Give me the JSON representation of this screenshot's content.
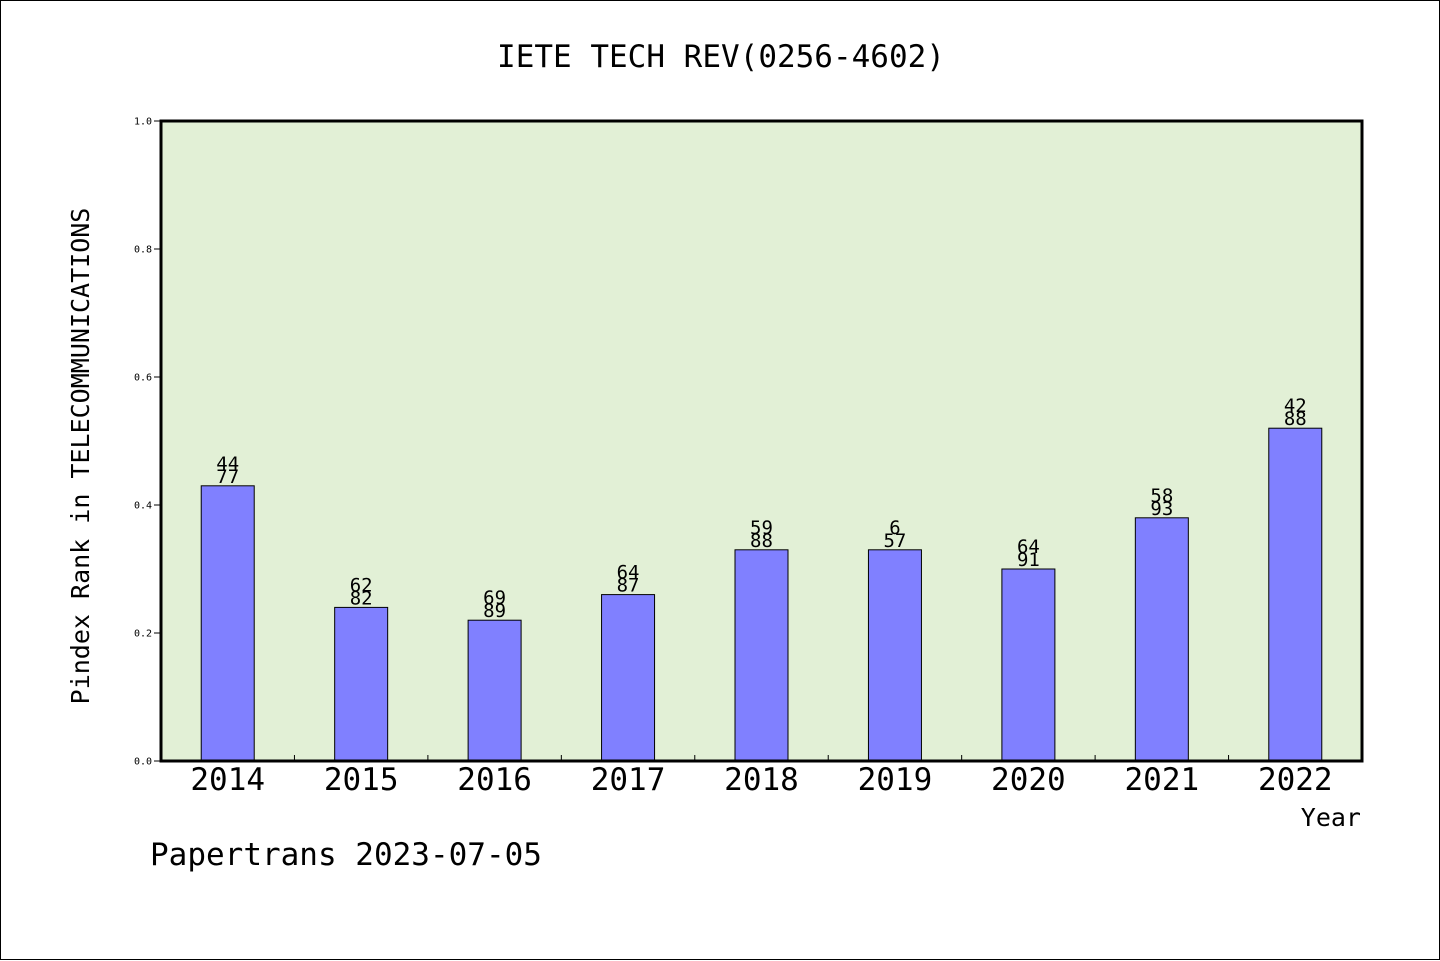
{
  "chart_data": {
    "type": "bar",
    "title": "IETE TECH REV(0256-4602)",
    "xlabel": "Year",
    "ylabel": "Pindex Rank in TELECOMMUNICATIONS",
    "categories": [
      "2014",
      "2015",
      "2016",
      "2017",
      "2018",
      "2019",
      "2020",
      "2021",
      "2022"
    ],
    "values": [
      0.43,
      0.24,
      0.22,
      0.26,
      0.33,
      0.33,
      0.3,
      0.38,
      0.52
    ],
    "label_top": [
      "44",
      "62",
      "69",
      "64",
      "59",
      "6",
      "64",
      "58",
      "42"
    ],
    "label_bottom": [
      "77",
      "82",
      "89",
      "87",
      "88",
      "57",
      "91",
      "93",
      "88"
    ],
    "ylim": [
      0,
      1.0
    ],
    "yticks": [
      "0.0",
      "0.2",
      "0.4",
      "0.6",
      "0.8",
      "1.0"
    ],
    "grid": false,
    "legend": "none"
  },
  "footer": {
    "text": "Papertrans 2023-07-05"
  },
  "colors": {
    "plot_background": "#e2f0d6",
    "bar_fill": "#8080ff",
    "axis": "#000000"
  }
}
